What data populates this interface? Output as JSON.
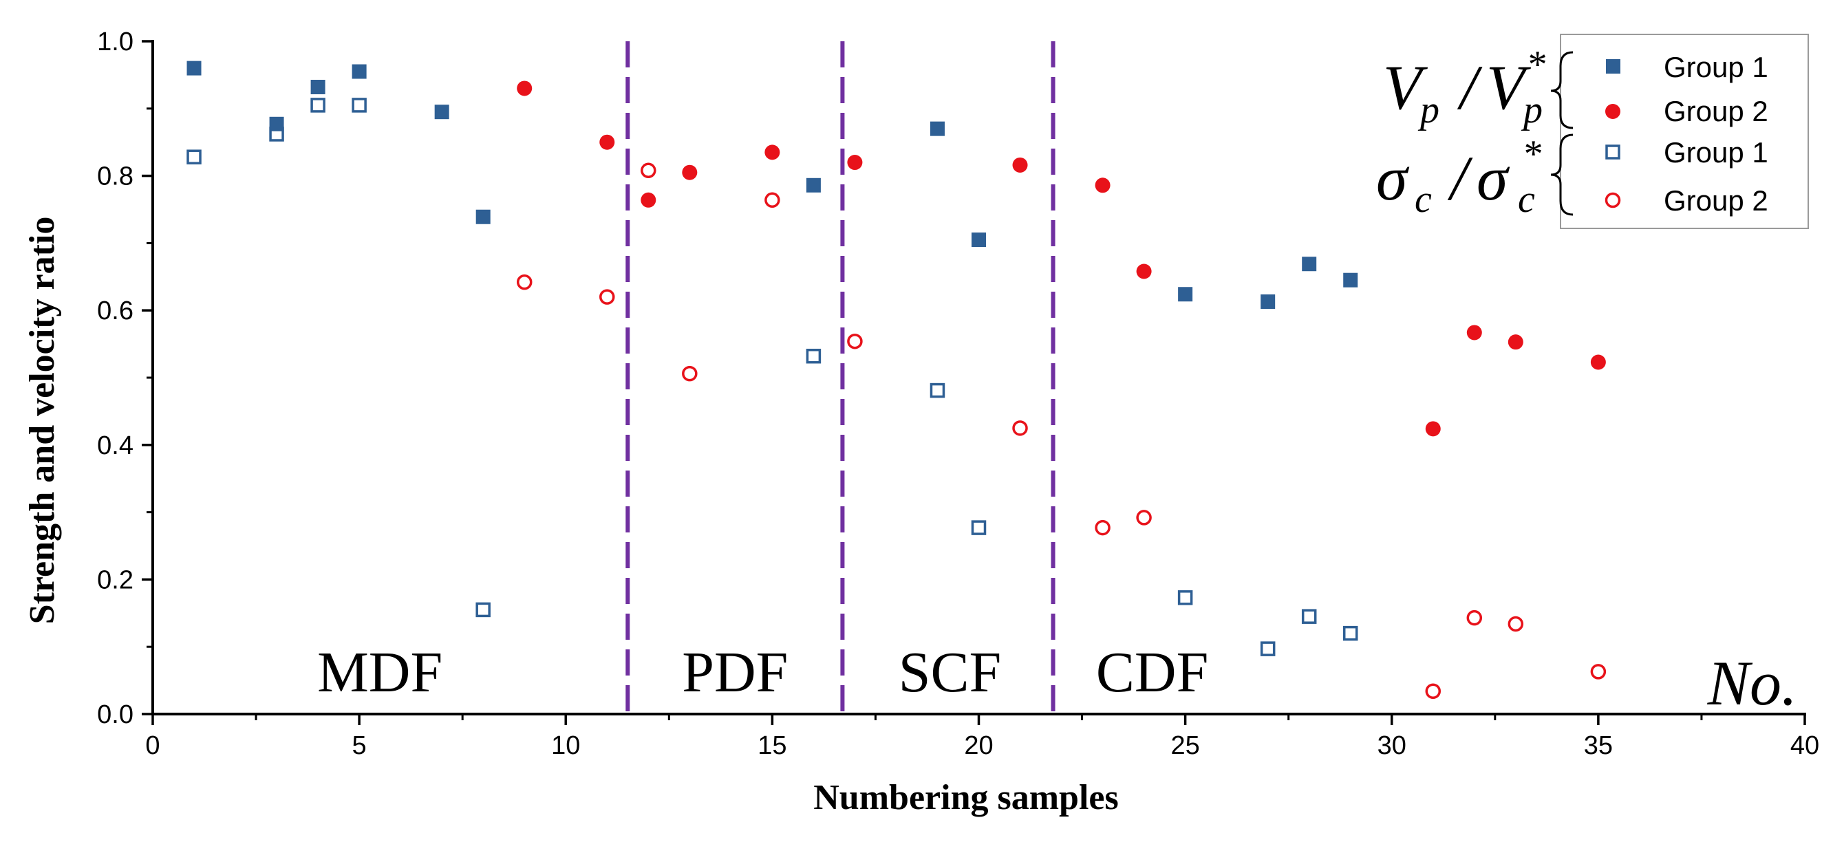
{
  "chart_data": {
    "type": "scatter",
    "title": "",
    "xlabel": "Numbering samples",
    "ylabel": "Strength and velocity ratio",
    "xlim": [
      0,
      40
    ],
    "ylim": [
      0,
      1.0
    ],
    "x_ticks": [
      0,
      5,
      10,
      15,
      20,
      25,
      30,
      35,
      40
    ],
    "x_tick_labels": [
      "0",
      "5",
      "10",
      "15",
      "20",
      "25",
      "30",
      "35",
      "40"
    ],
    "y_ticks": [
      0,
      0.2,
      0.4,
      0.6,
      0.8,
      1.0
    ],
    "y_tick_labels": [
      "0.0",
      "0.2",
      "0.4",
      "0.6",
      "0.8",
      "1.0"
    ],
    "grid": false,
    "dividers": [
      11.5,
      16.7,
      21.8
    ],
    "divider_color": "#7030A0",
    "regions": [
      {
        "label": "MDF",
        "x": 5.5
      },
      {
        "label": "PDF",
        "x": 14.1
      },
      {
        "label": "SCF",
        "x": 19.3
      },
      {
        "label": "CDF",
        "x": 24.2
      }
    ],
    "corner_label": "No.",
    "legend": {
      "position": "top-right",
      "group_labels": [
        "Vp / Vp*",
        "σc / σc*"
      ],
      "entries": [
        "Group 1",
        "Group 2",
        "Group 1",
        "Group 2"
      ]
    },
    "series": [
      {
        "name": "Group 1",
        "quantity": "Vp / Vp*",
        "marker": "square",
        "filled": true,
        "color": "#2E5F94",
        "x": [
          1,
          3,
          4,
          5,
          7,
          8,
          16,
          19,
          20,
          25,
          27,
          28,
          29
        ],
        "y": [
          0.96,
          0.877,
          0.932,
          0.955,
          0.895,
          0.739,
          0.786,
          0.87,
          0.705,
          0.624,
          0.613,
          0.669,
          0.645
        ]
      },
      {
        "name": "Group 2",
        "quantity": "Vp / Vp*",
        "marker": "circle",
        "filled": true,
        "color": "#E8121A",
        "x": [
          9,
          11,
          12,
          13,
          15,
          17,
          21,
          23,
          24,
          31,
          32,
          33,
          35
        ],
        "y": [
          0.93,
          0.85,
          0.764,
          0.805,
          0.835,
          0.82,
          0.816,
          0.786,
          0.658,
          0.424,
          0.567,
          0.553,
          0.523
        ]
      },
      {
        "name": "Group 1",
        "quantity": "σc / σc*",
        "marker": "square",
        "filled": false,
        "color": "#2E5F94",
        "x": [
          1,
          3,
          4,
          5,
          8,
          16,
          19,
          20,
          25,
          27,
          28,
          29
        ],
        "y": [
          0.828,
          0.862,
          0.905,
          0.905,
          0.155,
          0.532,
          0.481,
          0.277,
          0.173,
          0.097,
          0.145,
          0.12
        ]
      },
      {
        "name": "Group 2",
        "quantity": "σc / σc*",
        "marker": "circle",
        "filled": false,
        "color": "#E8121A",
        "x": [
          9,
          11,
          12,
          13,
          15,
          17,
          21,
          23,
          24,
          31,
          32,
          33,
          35
        ],
        "y": [
          0.642,
          0.62,
          0.808,
          0.506,
          0.764,
          0.554,
          0.425,
          0.277,
          0.292,
          0.034,
          0.143,
          0.134,
          0.063
        ]
      }
    ]
  }
}
